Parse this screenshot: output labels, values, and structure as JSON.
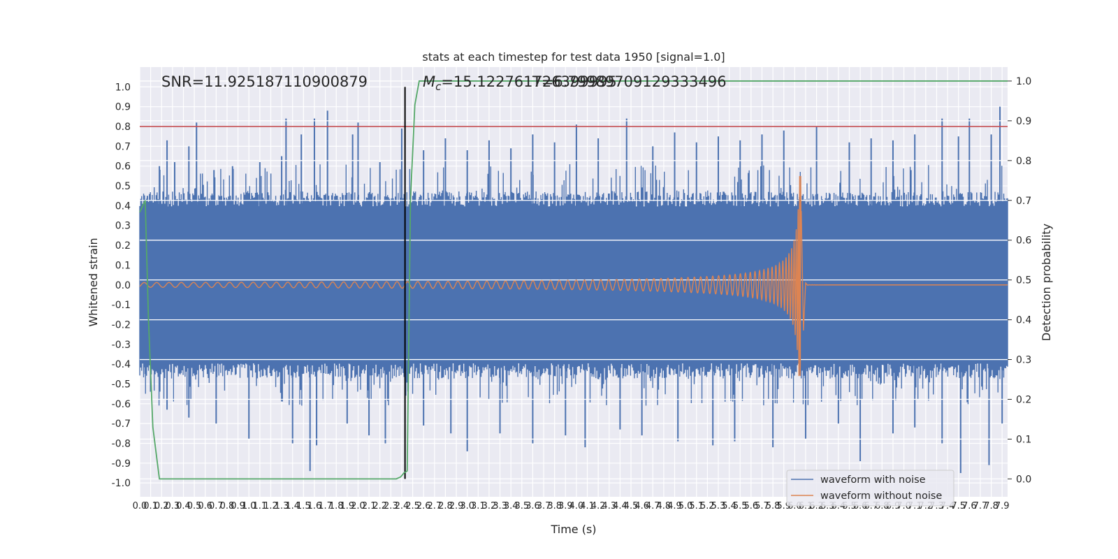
{
  "chart_data": {
    "type": "line",
    "title": "stats at each timestep for test data 1950 [signal=1.0]",
    "xlabel": "Time (s)",
    "ylabel_left": "Whitened strain",
    "ylabel_right": "Detection probability",
    "xlim": [
      0.0,
      7.95
    ],
    "ylim_left": [
      -1.07,
      1.1
    ],
    "ylim_right": [
      -0.045,
      1.035
    ],
    "grid": true,
    "x_ticks": [
      "0.0",
      "0.1",
      "0.2",
      "0.3",
      "0.4",
      "0.5",
      "0.6",
      "0.7",
      "0.8",
      "0.9",
      "1.0",
      "1.1",
      "1.2",
      "1.3",
      "1.4",
      "1.5",
      "1.6",
      "1.7",
      "1.8",
      "1.9",
      "2.0",
      "2.1",
      "2.2",
      "2.3",
      "2.4",
      "2.5",
      "2.6",
      "2.7",
      "2.8",
      "2.9",
      "3.0",
      "3.1",
      "3.2",
      "3.3",
      "3.4",
      "3.5",
      "3.6",
      "3.7",
      "3.8",
      "3.9",
      "4.0",
      "4.1",
      "4.2",
      "4.3",
      "4.4",
      "4.5",
      "4.6",
      "4.7",
      "4.8",
      "4.9",
      "5.0",
      "5.1",
      "5.2",
      "5.3",
      "5.4",
      "5.5",
      "5.6",
      "5.7",
      "5.8",
      "5.9",
      "6.0",
      "6.1",
      "6.2",
      "6.3",
      "6.4",
      "6.5",
      "6.6",
      "6.7",
      "6.8",
      "6.9",
      "7.0",
      "7.1",
      "7.2",
      "7.3",
      "7.4",
      "7.5",
      "7.6",
      "7.7",
      "7.8",
      "7.9"
    ],
    "y_ticks_left": [
      "1.0",
      "0.9",
      "0.8",
      "0.7",
      "0.6",
      "0.5",
      "0.4",
      "0.3",
      "0.2",
      "0.1",
      "0.0",
      "-0.1",
      "-0.2",
      "-0.3",
      "-0.4",
      "-0.5",
      "-0.6",
      "-0.7",
      "-0.8",
      "-0.9",
      "-1.0"
    ],
    "y_ticks_right": [
      "1.0",
      "0.9",
      "0.8",
      "0.7",
      "0.6",
      "0.5",
      "0.4",
      "0.3",
      "0.2",
      "0.1",
      "0.0"
    ],
    "annotations": {
      "snr": "SNR=11.925187110900879",
      "mc_symbol": "M",
      "mc_sub": "c",
      "mc_value": "=15.122761726399995",
      "overlap": "T=6.79989709129333496"
    },
    "threshold": {
      "value": 0.8,
      "color": "#c44e52"
    },
    "merger_marker": {
      "x": 2.43,
      "color": "#000000"
    },
    "noise_envelope": {
      "core_amplitude": 0.43,
      "peaks": [
        [
          0.07,
          0.45
        ],
        [
          0.18,
          0.6
        ],
        [
          0.25,
          0.73
        ],
        [
          0.32,
          0.62
        ],
        [
          0.45,
          0.7
        ],
        [
          0.52,
          0.82
        ],
        [
          0.68,
          0.58
        ],
        [
          0.85,
          0.6
        ],
        [
          1.1,
          0.62
        ],
        [
          1.3,
          0.65
        ],
        [
          1.34,
          0.84
        ],
        [
          1.48,
          0.76
        ],
        [
          1.6,
          0.84
        ],
        [
          1.72,
          0.88
        ],
        [
          1.95,
          0.76
        ],
        [
          2.0,
          0.82
        ],
        [
          2.2,
          0.62
        ],
        [
          2.4,
          0.79
        ],
        [
          2.6,
          0.68
        ],
        [
          2.8,
          0.74
        ],
        [
          3.0,
          0.68
        ],
        [
          3.2,
          0.73
        ],
        [
          3.4,
          0.69
        ],
        [
          3.6,
          0.76
        ],
        [
          3.8,
          0.72
        ],
        [
          4.0,
          0.81
        ],
        [
          4.2,
          0.74
        ],
        [
          4.46,
          0.84
        ],
        [
          4.7,
          0.7
        ],
        [
          4.9,
          0.77
        ],
        [
          5.1,
          0.72
        ],
        [
          5.3,
          0.75
        ],
        [
          5.5,
          0.73
        ],
        [
          5.7,
          0.76
        ],
        [
          5.9,
          0.78
        ],
        [
          6.2,
          0.8
        ],
        [
          6.5,
          0.72
        ],
        [
          6.7,
          0.74
        ],
        [
          6.9,
          0.73
        ],
        [
          7.1,
          0.76
        ],
        [
          7.35,
          0.84
        ],
        [
          7.5,
          0.75
        ],
        [
          7.6,
          0.84
        ],
        [
          7.8,
          0.76
        ],
        [
          7.88,
          0.9
        ]
      ],
      "troughs": [
        [
          0.05,
          -0.45
        ],
        [
          0.25,
          -0.63
        ],
        [
          0.45,
          -0.67
        ],
        [
          0.7,
          -0.7
        ],
        [
          1.0,
          -0.78
        ],
        [
          1.4,
          -0.8
        ],
        [
          1.56,
          -0.94
        ],
        [
          1.62,
          -0.81
        ],
        [
          1.9,
          -0.7
        ],
        [
          2.1,
          -0.76
        ],
        [
          2.25,
          -0.8
        ],
        [
          2.6,
          -0.71
        ],
        [
          2.85,
          -0.75
        ],
        [
          3.0,
          -0.84
        ],
        [
          3.3,
          -0.75
        ],
        [
          3.6,
          -0.8
        ],
        [
          3.9,
          -0.76
        ],
        [
          4.08,
          -0.82
        ],
        [
          4.4,
          -0.73
        ],
        [
          4.6,
          -0.76
        ],
        [
          4.93,
          -0.79
        ],
        [
          5.25,
          -0.81
        ],
        [
          5.45,
          -0.79
        ],
        [
          5.8,
          -0.82
        ],
        [
          6.1,
          -0.78
        ],
        [
          6.4,
          -0.7
        ],
        [
          6.6,
          -0.89
        ],
        [
          6.9,
          -0.75
        ],
        [
          7.1,
          -0.72
        ],
        [
          7.35,
          -0.8
        ],
        [
          7.52,
          -0.95
        ],
        [
          7.78,
          -0.91
        ],
        [
          7.9,
          -0.7
        ]
      ]
    },
    "series": [
      {
        "name": "waveform with noise",
        "color": "#4c72b0"
      },
      {
        "name": "waveform without noise",
        "color": "#dd8452",
        "start_amplitude": 0.012,
        "merger_time": 6.06,
        "peak_amplitude": 0.55,
        "trough_amplitude": -0.46
      },
      {
        "name": "",
        "color": "#55a868",
        "axis": "right",
        "x": [
          0.0,
          0.05,
          0.08,
          0.12,
          0.18,
          2.35,
          2.39,
          2.42,
          2.45,
          2.48,
          2.52,
          2.56,
          7.95
        ],
        "y": [
          0.67,
          0.7,
          0.4,
          0.13,
          0.0,
          0.0,
          0.005,
          0.015,
          0.02,
          0.7,
          0.94,
          1.0,
          1.0
        ]
      }
    ],
    "legend": {
      "placement": "lower-right",
      "entries": [
        "waveform with noise",
        "waveform without noise"
      ]
    }
  }
}
